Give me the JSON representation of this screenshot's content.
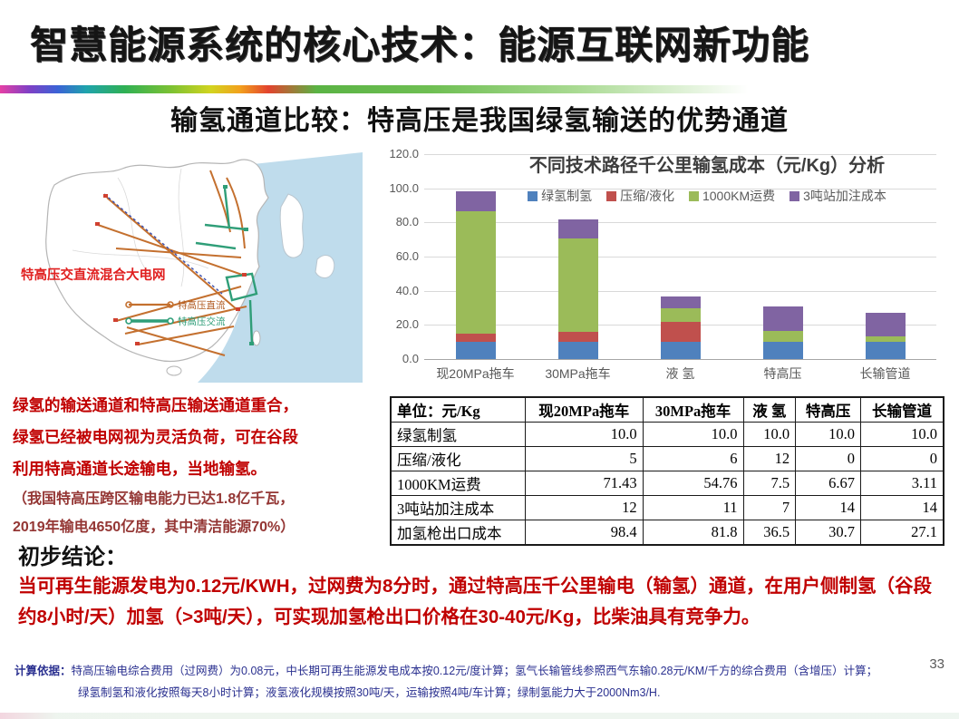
{
  "page": {
    "number": "33"
  },
  "header": {
    "title": "智慧能源系统的核心技术：能源互联网新功能",
    "subtitle": "输氢通道比较：特高压是我国绿氢输送的优势通道"
  },
  "map": {
    "label": "特高压交直流混合大电网",
    "legend": [
      {
        "name": "特高压直流",
        "color": "#c4702f"
      },
      {
        "name": "特高压交流",
        "color": "#2f9e78"
      }
    ],
    "sea_color": "#bfdcec",
    "dashed_line_color": "#3a4fae"
  },
  "left_note": {
    "main_lines": [
      "绿氢的输送通道和特高压输送通道重合，",
      "绿氢已经被电网视为灵活负荷，可在谷段",
      "利用特高通道长途输电，当地输氢。"
    ],
    "paren_lines": [
      "（我国特高压跨区输电能力已达1.8亿千瓦，",
      "2019年输电4650亿度，其中清洁能源70%）"
    ]
  },
  "chart_data": {
    "type": "bar",
    "stacked": true,
    "title": "不同技术路径千公里输氢成本（元/Kg）分析",
    "categories": [
      "现20MPa拖车",
      "30MPa拖车",
      "液 氢",
      "特高压",
      "长输管道"
    ],
    "series": [
      {
        "name": "绿氢制氢",
        "color": "#4f81bd",
        "values": [
          10.0,
          10.0,
          10.0,
          10.0,
          10.0
        ]
      },
      {
        "name": "压缩/液化",
        "color": "#c0504d",
        "values": [
          5,
          6,
          12,
          0,
          0
        ]
      },
      {
        "name": "1000KM运费",
        "color": "#9bbb59",
        "values": [
          71.43,
          54.76,
          7.5,
          6.67,
          3.11
        ]
      },
      {
        "name": "3吨站加注成本",
        "color": "#8064a2",
        "values": [
          12,
          11,
          7,
          14,
          14
        ]
      }
    ],
    "totals": [
      98.4,
      81.8,
      36.5,
      30.7,
      27.1
    ],
    "ylim": [
      0,
      120
    ],
    "yticks": [
      "120.0",
      "100.0",
      "80.0",
      "60.0",
      "40.0",
      "20.0",
      "0.0"
    ],
    "grid": true,
    "legend_position": "top"
  },
  "table": {
    "header": [
      "单位：元/Kg",
      "现20MPa拖车",
      "30MPa拖车",
      "液 氢",
      "特高压",
      "长输管道"
    ],
    "rows": [
      [
        "绿氢制氢",
        "10.0",
        "10.0",
        "10.0",
        "10.0",
        "10.0"
      ],
      [
        "压缩/液化",
        "5",
        "6",
        "12",
        "0",
        "0"
      ],
      [
        "1000KM运费",
        "71.43",
        "54.76",
        "7.5",
        "6.67",
        "3.11"
      ],
      [
        "3吨站加注成本",
        "12",
        "11",
        "7",
        "14",
        "14"
      ],
      [
        "加氢枪出口成本",
        "98.4",
        "81.8",
        "36.5",
        "30.7",
        "27.1"
      ]
    ]
  },
  "conclusion": {
    "heading": "初步结论：",
    "text": "当可再生能源发电为0.12元/KWH，过网费为8分时，通过特高压千公里输电（输氢）通道，在用户侧制氢（谷段约8小时/天）加氢（>3吨/天），可实现加氢枪出口价格在30-40元/Kg，比柴油具有竞争力。"
  },
  "footer": {
    "prefix": "计算依据：",
    "line1": "特高压输电综合费用（过网费）为0.08元，中长期可再生能源发电成本按0.12元/度计算；氢气长输管线参照西气东输0.28元/KM/千方的综合费用（含增压）计算；",
    "line2": "绿氢制氢和液化按照每天8小时计算；液氢液化规模按照30吨/天，运输按照4吨/车计算；绿制氢能力大于2000Nm3/H."
  },
  "colors": {
    "title_text": "#151515",
    "note_red": "#c00000",
    "note_dark_red": "#943634",
    "conclusion_red": "#c00000",
    "footer_navy": "#2b3190",
    "chart_axis_text": "#595959"
  }
}
